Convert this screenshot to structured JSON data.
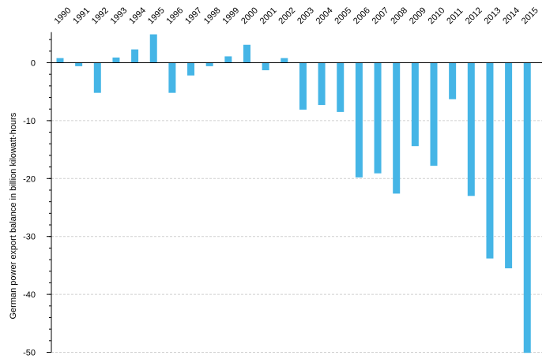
{
  "chart_data": {
    "type": "bar",
    "title": "",
    "xlabel": "",
    "ylabel": "German power export balance in billion kilowatt-hours",
    "categories": [
      "1990",
      "1991",
      "1992",
      "1993",
      "1994",
      "1995",
      "1996",
      "1997",
      "1998",
      "1999",
      "2000",
      "2001",
      "2002",
      "2003",
      "2004",
      "2005",
      "2006",
      "2007",
      "2008",
      "2009",
      "2010",
      "2011",
      "2012",
      "2013",
      "2014",
      "2015"
    ],
    "values": [
      0.8,
      -0.6,
      -5.2,
      0.9,
      2.3,
      4.9,
      -5.2,
      -2.2,
      -0.6,
      1.1,
      3.1,
      -1.3,
      0.8,
      -8.1,
      -7.3,
      -8.5,
      -19.8,
      -19.1,
      -22.6,
      -14.4,
      -17.8,
      -6.3,
      -23.0,
      -33.8,
      -35.5,
      -50.1
    ],
    "yticks": [
      0,
      -10,
      -20,
      -30,
      -40,
      -50
    ],
    "ylim": [
      -50,
      5
    ],
    "grid": "horizontal dashed",
    "bar_color": "#45b5e6"
  }
}
